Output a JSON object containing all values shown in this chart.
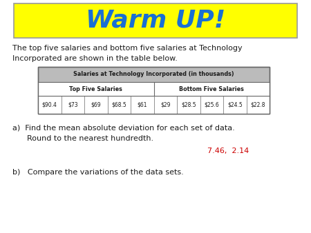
{
  "title": "Warm UP!",
  "title_color": "#1a6fd4",
  "title_bg_color": "#ffff00",
  "title_fontsize": 26,
  "intro_text_line1": "The top five salaries and bottom five salaries at Technology",
  "intro_text_line2": "Incorporated are shown in the table below.",
  "table_title": "Salaries at Technology Incorporated (in thousands)",
  "col_header_left": "Top Five Salaries",
  "col_header_right": "Bottom Five Salaries",
  "top_salaries": [
    "$90.4",
    "$73",
    "$69",
    "$68.5",
    "$61"
  ],
  "bottom_salaries": [
    "$29",
    "$28.5",
    "$25.6",
    "$24.5",
    "$22.8"
  ],
  "answer_text": "7.46,  2.14",
  "answer_color": "#cc0000",
  "bg_color": "#ffffff",
  "text_color": "#1a1a1a",
  "table_header_bg": "#bbbbbb",
  "table_border_color": "#666666",
  "intro_fontsize": 8.0,
  "table_title_fontsize": 5.8,
  "col_header_fontsize": 5.8,
  "data_fontsize": 5.5,
  "body_fontsize": 8.0,
  "answer_fontsize": 8.0
}
